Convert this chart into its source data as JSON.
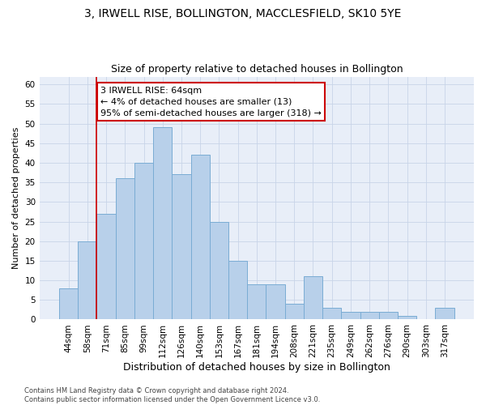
{
  "title1": "3, IRWELL RISE, BOLLINGTON, MACCLESFIELD, SK10 5YE",
  "title2": "Size of property relative to detached houses in Bollington",
  "xlabel": "Distribution of detached houses by size in Bollington",
  "ylabel": "Number of detached properties",
  "categories": [
    "44sqm",
    "58sqm",
    "71sqm",
    "85sqm",
    "99sqm",
    "112sqm",
    "126sqm",
    "140sqm",
    "153sqm",
    "167sqm",
    "181sqm",
    "194sqm",
    "208sqm",
    "221sqm",
    "235sqm",
    "249sqm",
    "262sqm",
    "276sqm",
    "290sqm",
    "303sqm",
    "317sqm"
  ],
  "values": [
    8,
    20,
    27,
    36,
    40,
    49,
    37,
    42,
    25,
    15,
    9,
    9,
    4,
    11,
    3,
    2,
    2,
    2,
    1,
    0,
    3
  ],
  "bar_color": "#b8d0ea",
  "bar_edge_color": "#7aacd4",
  "bar_edge_width": 0.7,
  "vline_color": "#cc0000",
  "vline_x": 1.5,
  "annotation_text": "3 IRWELL RISE: 64sqm\n← 4% of detached houses are smaller (13)\n95% of semi-detached houses are larger (318) →",
  "annotation_box_color": "white",
  "annotation_box_edge": "#cc0000",
  "ylim": [
    0,
    62
  ],
  "yticks": [
    0,
    5,
    10,
    15,
    20,
    25,
    30,
    35,
    40,
    45,
    50,
    55,
    60
  ],
  "grid_color": "#c8d4e8",
  "background_color": "#e8eef8",
  "footnote": "Contains HM Land Registry data © Crown copyright and database right 2024.\nContains public sector information licensed under the Open Government Licence v3.0.",
  "title1_fontsize": 10,
  "title2_fontsize": 9,
  "xlabel_fontsize": 9,
  "ylabel_fontsize": 8,
  "tick_fontsize": 7.5,
  "annot_fontsize": 8,
  "footnote_fontsize": 6
}
